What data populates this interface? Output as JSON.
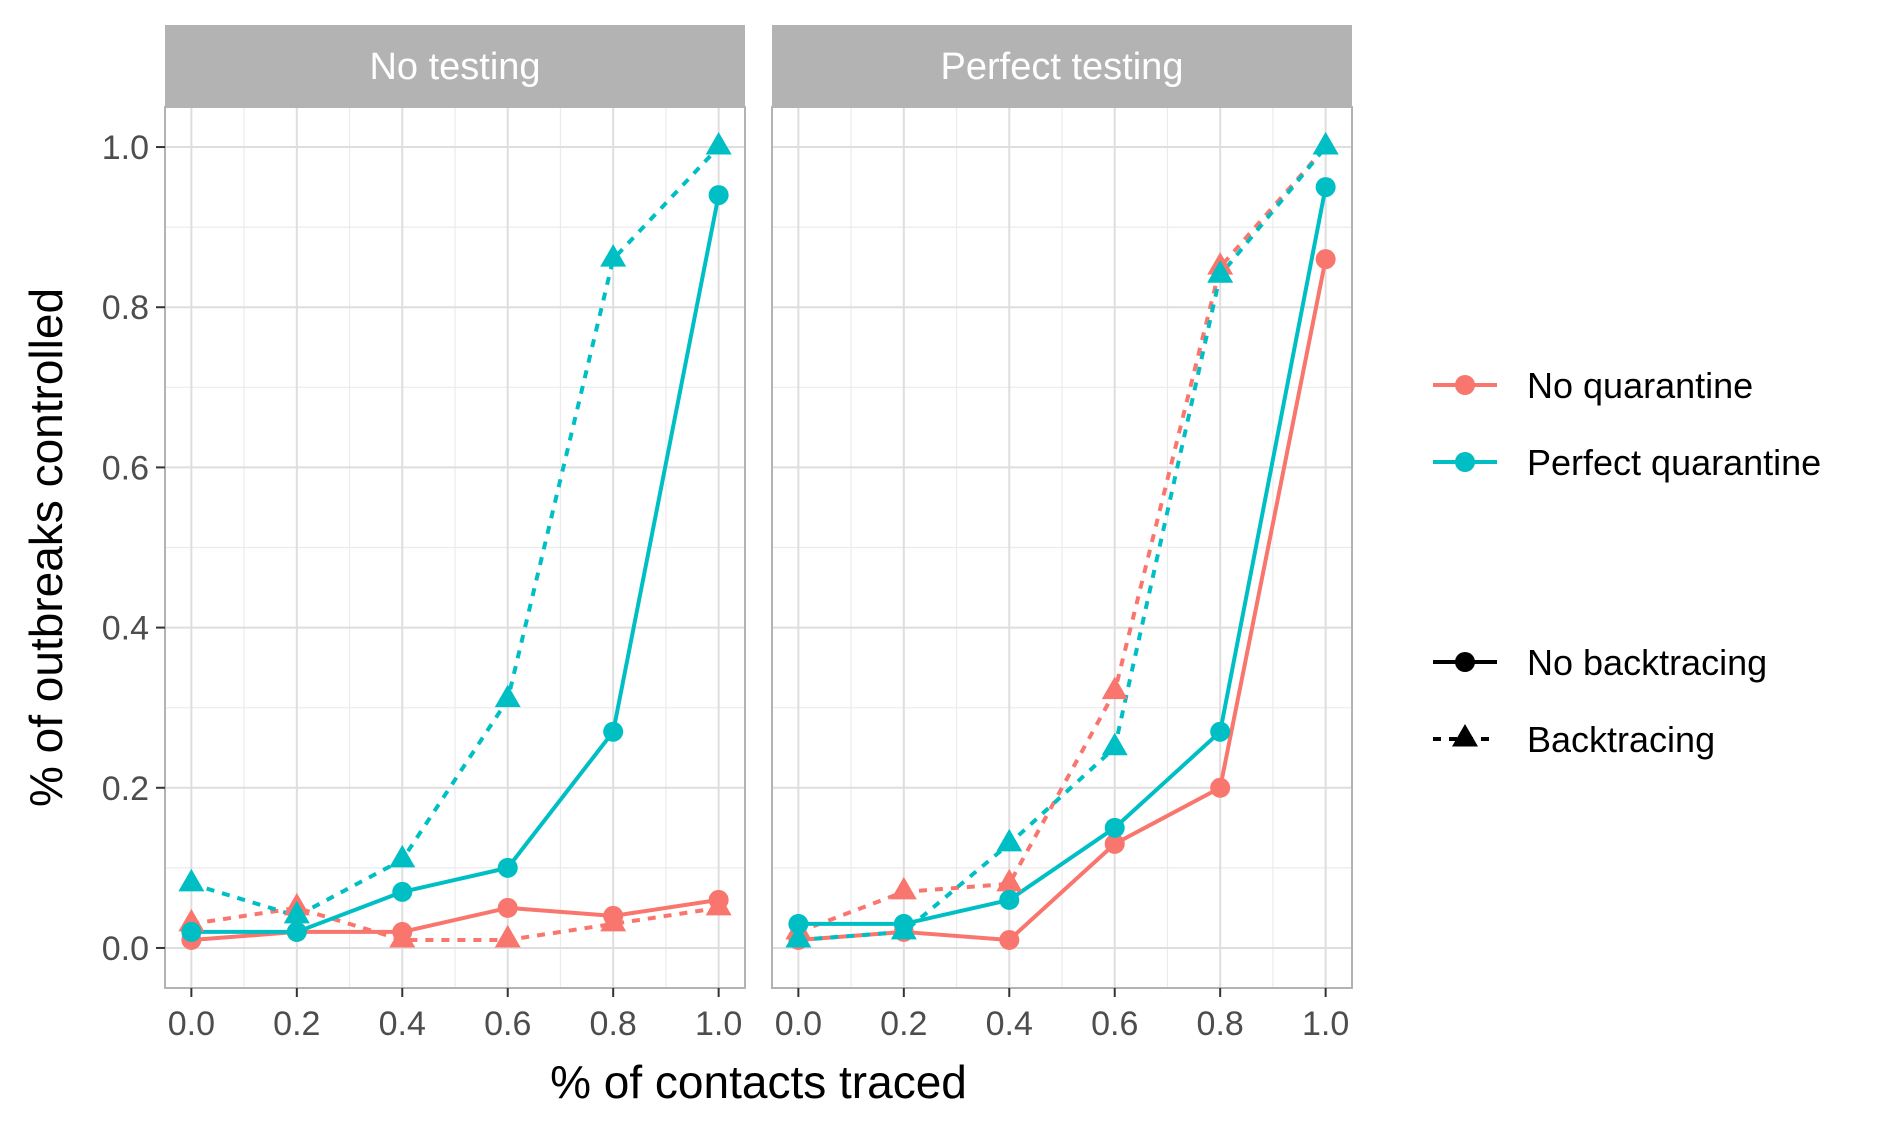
{
  "chart_data": {
    "type": "line",
    "xlabel": "% of contacts traced",
    "ylabel": "% of outbreaks controlled",
    "x": [
      0.0,
      0.2,
      0.4,
      0.6,
      0.8,
      1.0
    ],
    "xlim": [
      -0.05,
      1.05
    ],
    "ylim": [
      -0.05,
      1.05
    ],
    "xticks": [
      0.0,
      0.2,
      0.4,
      0.6,
      0.8,
      1.0
    ],
    "xtick_labels": [
      "0.0",
      "0.2",
      "0.4",
      "0.6",
      "0.8",
      "1.0"
    ],
    "yticks": [
      0.0,
      0.2,
      0.4,
      0.6,
      0.8,
      1.0
    ],
    "ytick_labels": [
      "0.0",
      "0.2",
      "0.4",
      "0.6",
      "0.8",
      "1.0"
    ],
    "grid": true,
    "legend_placement": "right",
    "color_legend": [
      {
        "label": "No quarantine",
        "color": "#F8766D"
      },
      {
        "label": "Perfect quarantine",
        "color": "#00BFC4"
      }
    ],
    "linetype_legend": [
      {
        "label": "No backtracing",
        "shape": "circle",
        "dash": "solid"
      },
      {
        "label": "Backtracing",
        "shape": "triangle",
        "dash": "dashed"
      }
    ],
    "panels": [
      {
        "title": "No testing",
        "series": [
          {
            "quarantine": "No quarantine",
            "backtracing": "No backtracing",
            "color": "#F8766D",
            "shape": "circle",
            "dash": "solid",
            "values": [
              0.01,
              0.02,
              0.02,
              0.05,
              0.04,
              0.06
            ]
          },
          {
            "quarantine": "No quarantine",
            "backtracing": "Backtracing",
            "color": "#F8766D",
            "shape": "triangle",
            "dash": "dashed",
            "values": [
              0.03,
              0.05,
              0.01,
              0.01,
              0.03,
              0.05
            ]
          },
          {
            "quarantine": "Perfect quarantine",
            "backtracing": "No backtracing",
            "color": "#00BFC4",
            "shape": "circle",
            "dash": "solid",
            "values": [
              0.02,
              0.02,
              0.07,
              0.1,
              0.27,
              0.94
            ]
          },
          {
            "quarantine": "Perfect quarantine",
            "backtracing": "Backtracing",
            "color": "#00BFC4",
            "shape": "triangle",
            "dash": "dashed",
            "values": [
              0.08,
              0.04,
              0.11,
              0.31,
              0.86,
              1.0
            ]
          }
        ]
      },
      {
        "title": "Perfect testing",
        "series": [
          {
            "quarantine": "No quarantine",
            "backtracing": "No backtracing",
            "color": "#F8766D",
            "shape": "circle",
            "dash": "solid",
            "values": [
              0.01,
              0.02,
              0.01,
              0.13,
              0.2,
              0.86
            ]
          },
          {
            "quarantine": "No quarantine",
            "backtracing": "Backtracing",
            "color": "#F8766D",
            "shape": "triangle",
            "dash": "dashed",
            "values": [
              0.02,
              0.07,
              0.08,
              0.32,
              0.85,
              1.0
            ]
          },
          {
            "quarantine": "Perfect quarantine",
            "backtracing": "No backtracing",
            "color": "#00BFC4",
            "shape": "circle",
            "dash": "solid",
            "values": [
              0.03,
              0.03,
              0.06,
              0.15,
              0.27,
              0.95
            ]
          },
          {
            "quarantine": "Perfect quarantine",
            "backtracing": "Backtracing",
            "color": "#00BFC4",
            "shape": "triangle",
            "dash": "dashed",
            "values": [
              0.01,
              0.02,
              0.13,
              0.25,
              0.84,
              1.0
            ]
          }
        ]
      }
    ]
  }
}
